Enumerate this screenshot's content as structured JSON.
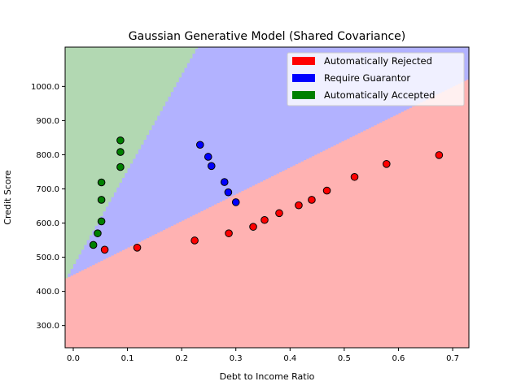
{
  "chart_data": {
    "type": "scatter",
    "title": "Gaussian Generative Model (Shared Covariance)",
    "xlabel": "Debt to Income Ratio",
    "ylabel": "Credit Score",
    "xlim": [
      -0.015,
      0.73
    ],
    "ylim": [
      235,
      1115
    ],
    "x_ticks": [
      0.0,
      0.1,
      0.2,
      0.3,
      0.4,
      0.5,
      0.6,
      0.7
    ],
    "x_tick_labels": [
      "0.0",
      "0.1",
      "0.2",
      "0.3",
      "0.4",
      "0.5",
      "0.6",
      "0.7"
    ],
    "y_ticks": [
      300,
      400,
      500,
      600,
      700,
      800,
      900,
      1000
    ],
    "y_tick_labels": [
      "300.0",
      "400.0",
      "500.0",
      "600.0",
      "700.0",
      "800.0",
      "900.0",
      "1000.0"
    ],
    "grid": false,
    "legend_position": "top-right",
    "regions": [
      {
        "name": "Automatically Rejected",
        "fill": "#ffb2b2"
      },
      {
        "name": "Require Guarantor",
        "fill": "#b2b2ff"
      },
      {
        "name": "Automatically Accepted",
        "fill": "#b2d8b2"
      }
    ],
    "boundaries": {
      "rejected_upper": {
        "intercept": 450,
        "slope": 786
      },
      "guarantor_upper": {
        "intercept": 480,
        "slope": 2800
      }
    },
    "series": [
      {
        "name": "Automatically Rejected",
        "color": "#ff0000",
        "points": [
          {
            "x": 0.058,
            "y": 522
          },
          {
            "x": 0.118,
            "y": 528
          },
          {
            "x": 0.224,
            "y": 549
          },
          {
            "x": 0.287,
            "y": 570
          },
          {
            "x": 0.332,
            "y": 589
          },
          {
            "x": 0.353,
            "y": 609
          },
          {
            "x": 0.38,
            "y": 629
          },
          {
            "x": 0.416,
            "y": 652
          },
          {
            "x": 0.44,
            "y": 668
          },
          {
            "x": 0.468,
            "y": 695
          },
          {
            "x": 0.519,
            "y": 735
          },
          {
            "x": 0.578,
            "y": 773
          },
          {
            "x": 0.675,
            "y": 799
          }
        ]
      },
      {
        "name": "Require Guarantor",
        "color": "#0000ff",
        "points": [
          {
            "x": 0.234,
            "y": 829
          },
          {
            "x": 0.249,
            "y": 794
          },
          {
            "x": 0.255,
            "y": 767
          },
          {
            "x": 0.279,
            "y": 720
          },
          {
            "x": 0.286,
            "y": 690
          },
          {
            "x": 0.3,
            "y": 661
          }
        ]
      },
      {
        "name": "Automatically Accepted",
        "color": "#008000",
        "points": [
          {
            "x": 0.087,
            "y": 842
          },
          {
            "x": 0.087,
            "y": 808
          },
          {
            "x": 0.087,
            "y": 764
          },
          {
            "x": 0.052,
            "y": 719
          },
          {
            "x": 0.052,
            "y": 668
          },
          {
            "x": 0.052,
            "y": 605
          },
          {
            "x": 0.045,
            "y": 570
          },
          {
            "x": 0.037,
            "y": 536
          }
        ]
      }
    ]
  }
}
